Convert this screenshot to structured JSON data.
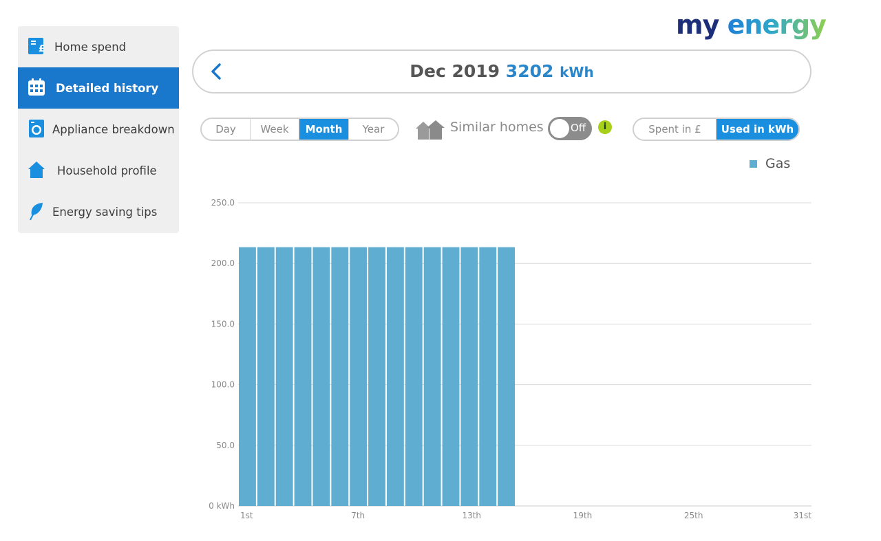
{
  "logo": {
    "my": "my",
    "energy": "energy"
  },
  "sidebar": {
    "items": [
      {
        "label": "Home spend",
        "icon": "pound-document-icon",
        "active": false
      },
      {
        "label": "Detailed history",
        "icon": "calendar-icon",
        "active": true
      },
      {
        "label": "Appliance breakdown",
        "icon": "washing-machine-icon",
        "active": false
      },
      {
        "label": "Household profile",
        "icon": "house-icon",
        "active": false
      },
      {
        "label": "Energy saving tips",
        "icon": "leaf-icon",
        "active": false
      }
    ]
  },
  "header": {
    "period": "Dec 2019",
    "total": "3202",
    "unit": "kWh"
  },
  "period_selector": {
    "options": [
      "Day",
      "Week",
      "Month",
      "Year"
    ],
    "selected": "Month"
  },
  "similar_homes": {
    "label": "Similar homes",
    "toggle": "Off",
    "info": "i"
  },
  "mode_selector": {
    "options": [
      "Spent in £",
      "Used in kWh"
    ],
    "selected": "Used in kWh"
  },
  "colors": {
    "accent": "#1a8fe0",
    "sidebar_active": "#1a78cc",
    "bar": "#5fadd1",
    "info": "#a8cf1a"
  },
  "chart_data": {
    "type": "bar",
    "title": "",
    "xlabel": "",
    "ylabel": "",
    "ylim": [
      0,
      250
    ],
    "y_ticks": [
      "0 kWh",
      "50.0",
      "100.0",
      "150.0",
      "200.0",
      "250.0"
    ],
    "x_tick_labels": [
      "1st",
      "7th",
      "13th",
      "19th",
      "25th",
      "31st"
    ],
    "categories": [
      "1",
      "2",
      "3",
      "4",
      "5",
      "6",
      "7",
      "8",
      "9",
      "10",
      "11",
      "12",
      "13",
      "14",
      "15",
      "16",
      "17",
      "18",
      "19",
      "20",
      "21",
      "22",
      "23",
      "24",
      "25",
      "26",
      "27",
      "28",
      "29",
      "30",
      "31"
    ],
    "series": [
      {
        "name": "Gas",
        "values": [
          213.4,
          213.4,
          213.4,
          213.4,
          213.4,
          213.4,
          213.4,
          213.4,
          213.4,
          213.4,
          213.4,
          213.4,
          213.4,
          213.4,
          213.4,
          null,
          null,
          null,
          null,
          null,
          null,
          null,
          null,
          null,
          null,
          null,
          null,
          null,
          null,
          null,
          null
        ]
      }
    ],
    "legend": "top-right",
    "grid": true
  }
}
